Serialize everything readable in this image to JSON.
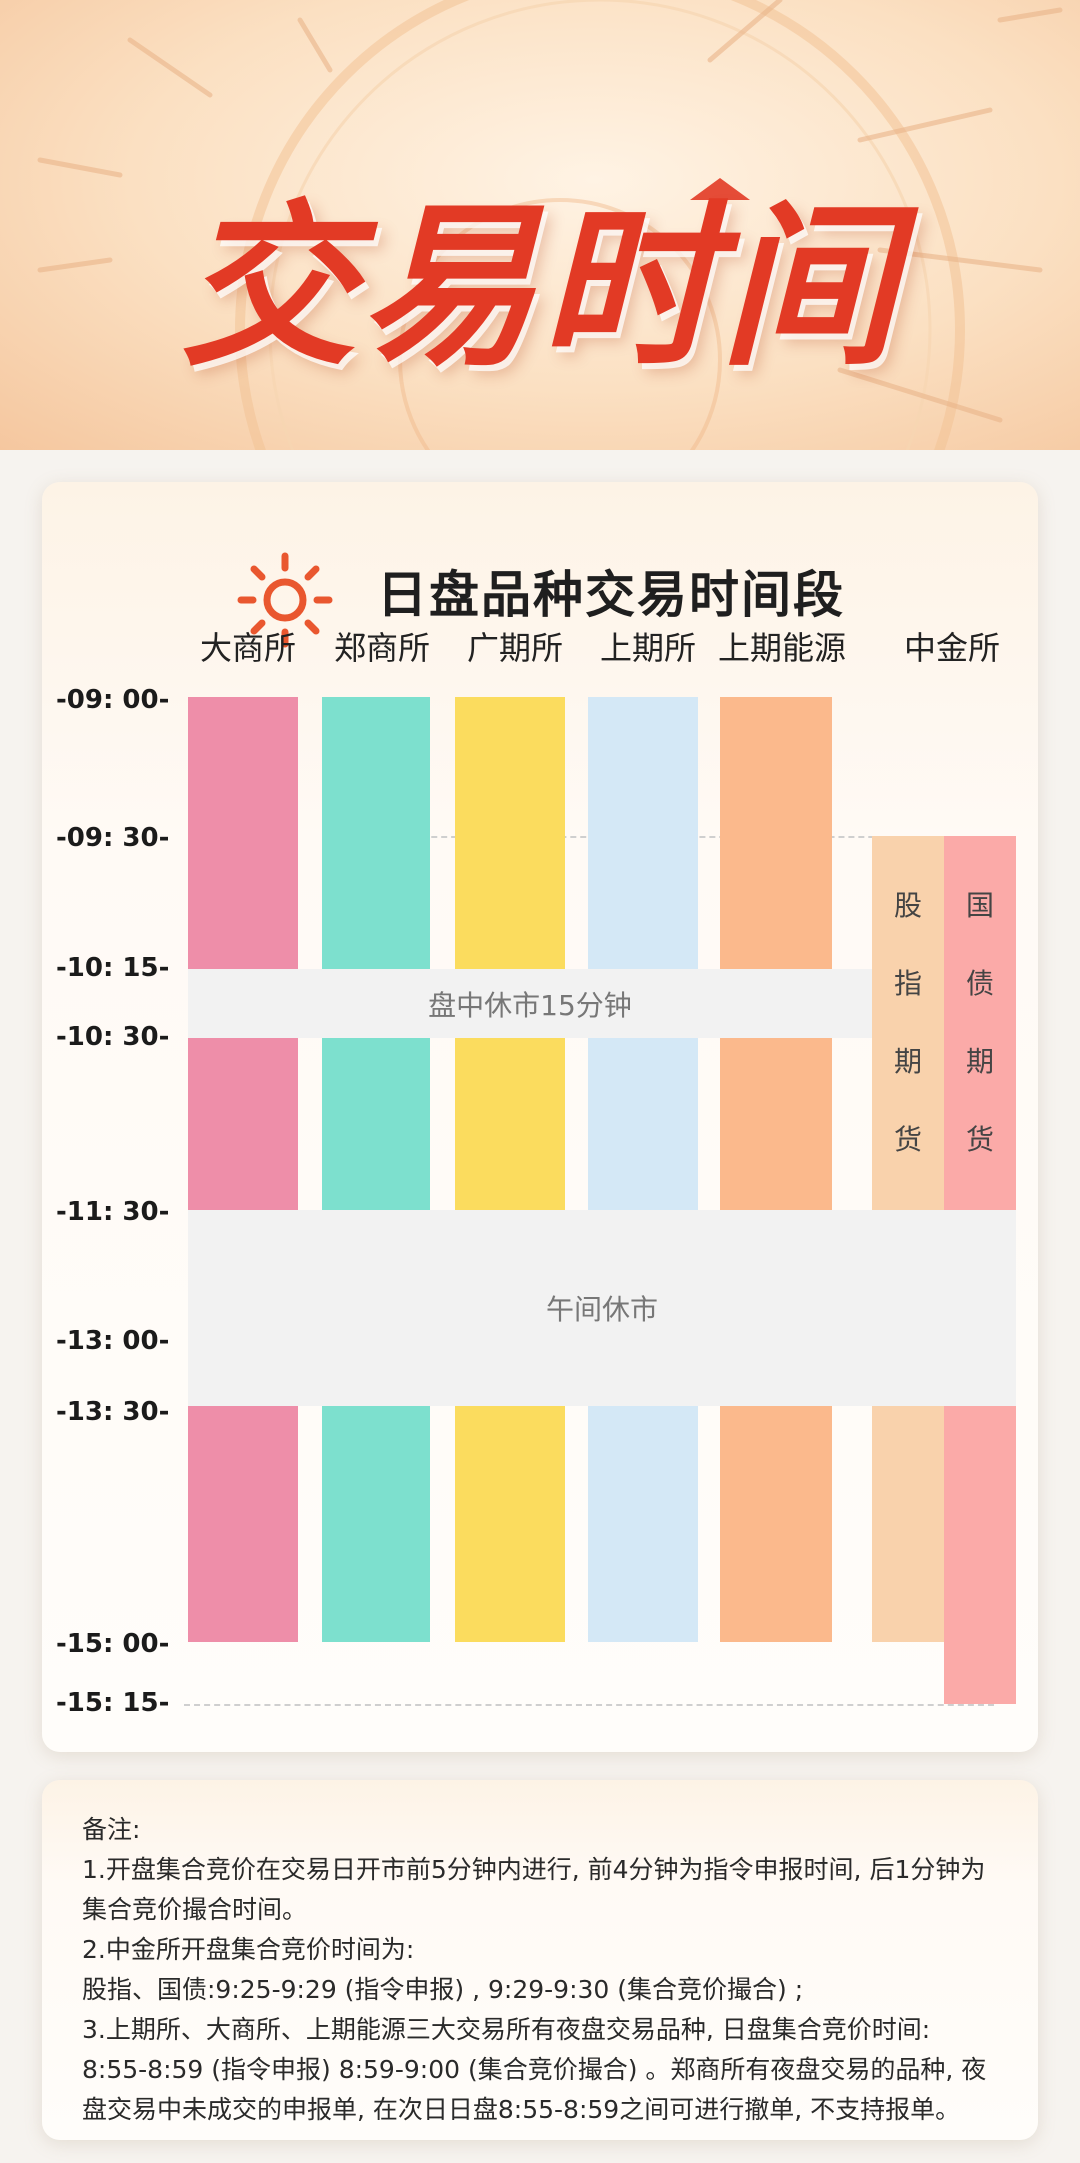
{
  "banner": {
    "title": "交易时间"
  },
  "schedule": {
    "title": "日盘品种交易时间段",
    "exchanges": [
      "大商所",
      "郑商所",
      "广期所",
      "上期所",
      "上期能源",
      "中金所"
    ],
    "time_labels": [
      "-09: 00-",
      "-09: 30-",
      "-10: 15-",
      "-10: 30-",
      "-11: 30-",
      "-13: 00-",
      "-13: 30-",
      "-15: 00-",
      "-15: 15-"
    ],
    "break_mid_label": "盘中休市15分钟",
    "break_noon_label": "午间休市",
    "cffex_stock_index": "股指期货",
    "cffex_bond": "国债期货",
    "colors": {
      "dce": "#ee8ea9",
      "czce": "#7de0ce",
      "gfex": "#fbdc5e",
      "shfe": "#d4e8f6",
      "ine": "#fbb98c",
      "stock_index": "#f9d2ac",
      "bond": "#fbaaa8",
      "break": "#f2f2f2"
    }
  },
  "notes": {
    "lines": [
      "备注:",
      "1.开盘集合竞价在交易日开市前5分钟内进行, 前4分钟为指令申报时间, 后1分钟为集合竞价撮合时间。",
      "2.中金所开盘集合竞价时间为:",
      "股指、国债:9:25-9:29 (指令申报) , 9:29-9:30 (集合竞价撮合) ;",
      "3.上期所、大商所、上期能源三大交易所有夜盘交易品种, 日盘集合竞价时间: 8:55-8:59 (指令申报) 8:59-9:00 (集合竞价撮合) 。郑商所有夜盘交易的品种, 夜盘交易中未成交的申报单, 在次日日盘8:55-8:59之间可进行撤单, 不支持报单。"
    ]
  }
}
